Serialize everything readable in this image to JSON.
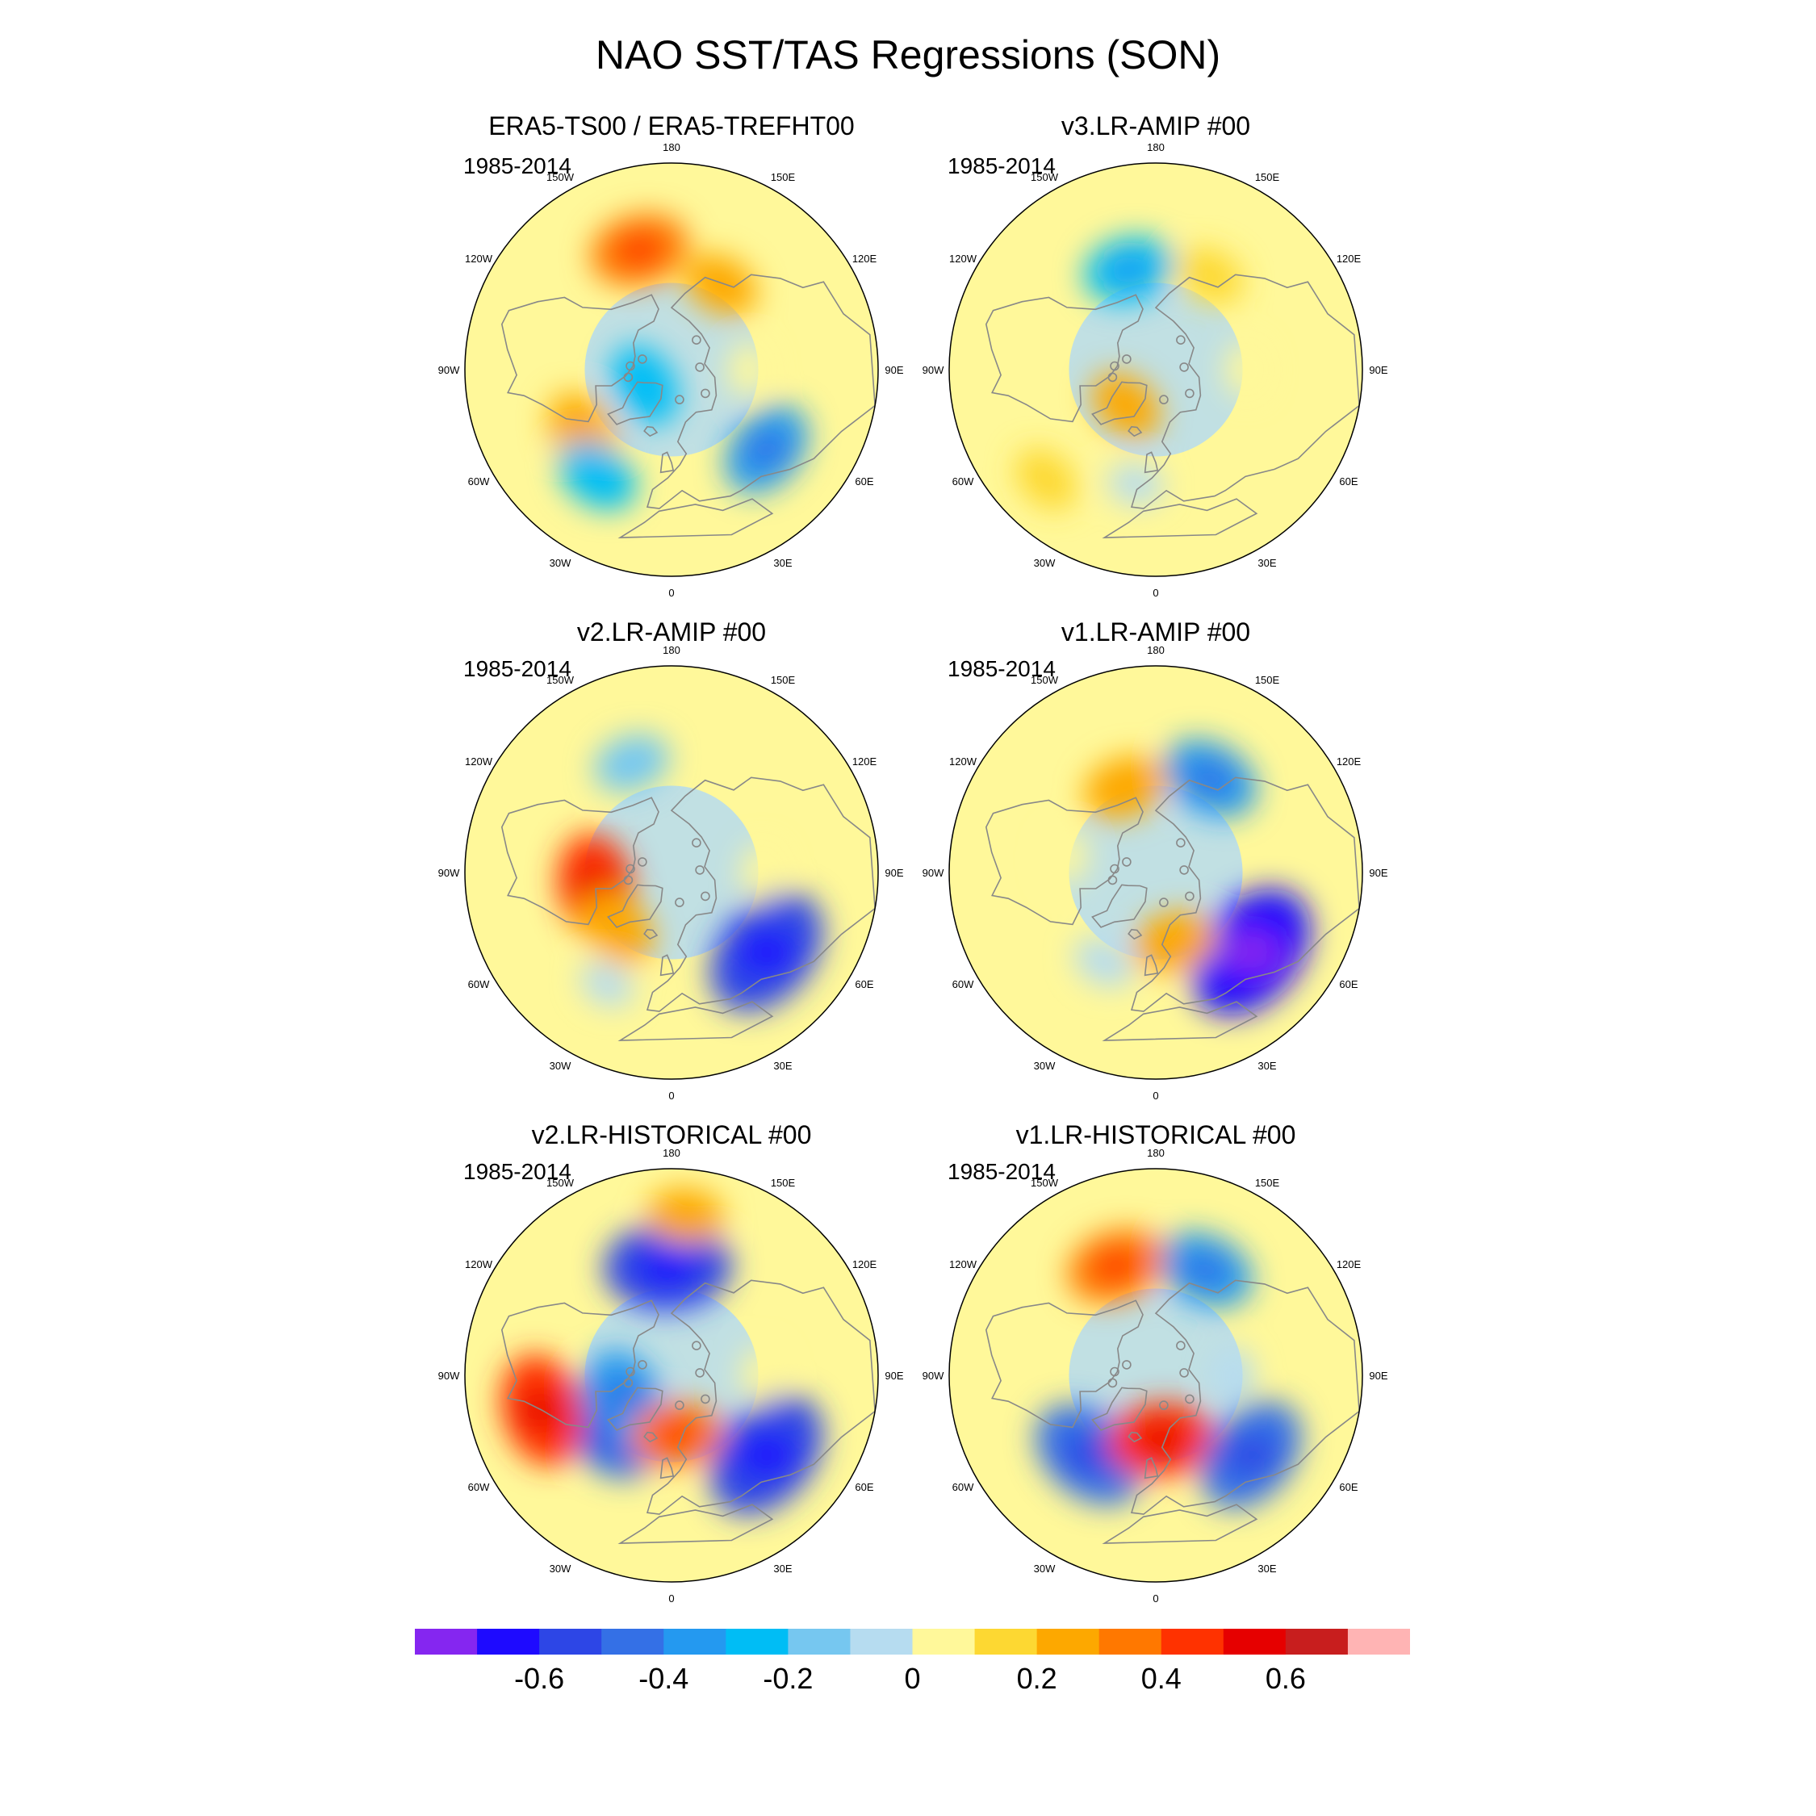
{
  "chart_data": {
    "type": "heatmap",
    "title": "NAO SST/TAS Regressions (SON)",
    "projection": "north-polar-stereographic",
    "longitude_labels": [
      "180",
      "150E",
      "120E",
      "90E",
      "60E",
      "30E",
      "0",
      "30W",
      "60W",
      "90W",
      "120W",
      "150W"
    ],
    "panels": [
      {
        "title": "ERA5-TS00 / ERA5-TREFHT00",
        "period": "1985-2014",
        "anomalies": [
          {
            "region": "north-pacific",
            "lon": -165,
            "lat": 42,
            "value": 0.35
          },
          {
            "region": "labrador-sea",
            "lon": -55,
            "lat": 48,
            "value": 0.25
          },
          {
            "region": "arctic-canada",
            "lon": -60,
            "lat": 78,
            "value": -0.25
          },
          {
            "region": "gulf-stream",
            "lon": -35,
            "lat": 40,
            "value": -0.25
          },
          {
            "region": "caspian",
            "lon": 50,
            "lat": 42,
            "value": -0.35
          },
          {
            "region": "eurasia",
            "lon": 90,
            "lat": 60,
            "value": 0.05
          },
          {
            "region": "kamchatka",
            "lon": 150,
            "lat": 52,
            "value": 0.2
          }
        ]
      },
      {
        "title": "v3.LR-AMIP  #00",
        "period": "1985-2014",
        "anomalies": [
          {
            "region": "north-pacific",
            "lon": -165,
            "lat": 50,
            "value": -0.3
          },
          {
            "region": "okhotsk",
            "lon": 150,
            "lat": 48,
            "value": 0.15
          },
          {
            "region": "greenland",
            "lon": -40,
            "lat": 72,
            "value": 0.2
          },
          {
            "region": "subtropical-atlantic",
            "lon": -45,
            "lat": 30,
            "value": 0.15
          },
          {
            "region": "eurasia",
            "lon": 90,
            "lat": 55,
            "value": 0.05
          },
          {
            "region": "east-atlantic",
            "lon": -10,
            "lat": 45,
            "value": -0.05
          }
        ]
      },
      {
        "title": "v2.LR-AMIP  #00",
        "period": "1985-2014",
        "anomalies": [
          {
            "region": "north-pacific",
            "lon": -160,
            "lat": 45,
            "value": -0.2
          },
          {
            "region": "hudson-bay",
            "lon": -80,
            "lat": 60,
            "value": 0.4
          },
          {
            "region": "labrador-sea",
            "lon": -45,
            "lat": 60,
            "value": 0.25
          },
          {
            "region": "caspian",
            "lon": 50,
            "lat": 42,
            "value": -0.6
          },
          {
            "region": "eurasia",
            "lon": 90,
            "lat": 55,
            "value": 0.05
          },
          {
            "region": "mid-atlantic",
            "lon": -30,
            "lat": 40,
            "value": -0.05
          }
        ]
      },
      {
        "title": "v1.LR-AMIP  #00",
        "period": "1985-2014",
        "anomalies": [
          {
            "region": "east-siberia",
            "lon": 150,
            "lat": 48,
            "value": -0.35
          },
          {
            "region": "north-pacific",
            "lon": -160,
            "lat": 55,
            "value": 0.25
          },
          {
            "region": "canada",
            "lon": -100,
            "lat": 55,
            "value": 0.05
          },
          {
            "region": "caspian",
            "lon": 50,
            "lat": 42,
            "value": -0.65
          },
          {
            "region": "scandinavia",
            "lon": 15,
            "lat": 62,
            "value": 0.25
          },
          {
            "region": "north-atlantic",
            "lon": -30,
            "lat": 50,
            "value": -0.1
          }
        ]
      },
      {
        "title": "v2.LR-HISTORICAL  #00",
        "period": "1985-2014",
        "anomalies": [
          {
            "region": "north-pacific",
            "lon": -178,
            "lat": 48,
            "value": -0.55
          },
          {
            "region": "subtropical-pacific",
            "lon": 175,
            "lat": 28,
            "value": 0.2
          },
          {
            "region": "labrador-sea",
            "lon": -50,
            "lat": 58,
            "value": -0.45
          },
          {
            "region": "baffin",
            "lon": -65,
            "lat": 70,
            "value": -0.35
          },
          {
            "region": "gulf-of-mexico",
            "lon": -75,
            "lat": 38,
            "value": 0.45
          },
          {
            "region": "norwegian-sea",
            "lon": 5,
            "lat": 67,
            "value": 0.3
          },
          {
            "region": "caspian",
            "lon": 50,
            "lat": 42,
            "value": -0.6
          },
          {
            "region": "eurasia",
            "lon": 90,
            "lat": 55,
            "value": 0.05
          }
        ]
      },
      {
        "title": "v1.LR-HISTORICAL  #00",
        "period": "1985-2014",
        "anomalies": [
          {
            "region": "north-pacific-west",
            "lon": 155,
            "lat": 45,
            "value": -0.35
          },
          {
            "region": "north-pacific-east",
            "lon": -160,
            "lat": 45,
            "value": 0.35
          },
          {
            "region": "north-atlantic",
            "lon": -40,
            "lat": 50,
            "value": -0.5
          },
          {
            "region": "norwegian-sea",
            "lon": 5,
            "lat": 65,
            "value": 0.4
          },
          {
            "region": "caspian",
            "lon": 50,
            "lat": 42,
            "value": -0.5
          },
          {
            "region": "eurasia",
            "lon": 90,
            "lat": 60,
            "value": -0.05
          }
        ]
      }
    ],
    "colorbar": {
      "levels": [
        -0.7,
        -0.6,
        -0.5,
        -0.4,
        -0.3,
        -0.2,
        -0.1,
        0,
        0.1,
        0.2,
        0.3,
        0.4,
        0.5,
        0.6,
        0.7
      ],
      "tick_labels": [
        "-0.6",
        "-0.4",
        "-0.2",
        "0",
        "0.2",
        "0.4",
        "0.6"
      ],
      "tick_values": [
        -0.6,
        -0.4,
        -0.2,
        0,
        0.2,
        0.4,
        0.6
      ],
      "colors": [
        "#8526f0",
        "#1e0aff",
        "#2d46e6",
        "#3470e6",
        "#2499f0",
        "#00bdf5",
        "#76c7f0",
        "#b6dcf0",
        "#fff89a",
        "#fdd832",
        "#fda800",
        "#ff7800",
        "#ff3200",
        "#e60000",
        "#c81e1e",
        "#ffb4b4"
      ]
    }
  }
}
